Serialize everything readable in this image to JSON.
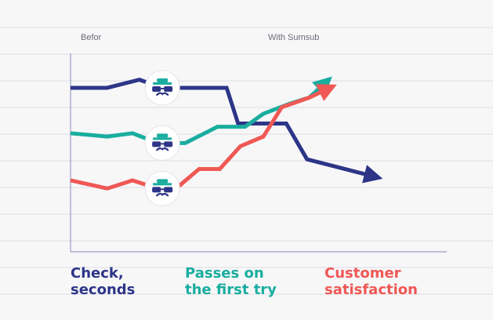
{
  "chart_data": {
    "type": "line",
    "phase_labels": {
      "before": "Befor",
      "after": "With Sumsub"
    },
    "x": [
      0,
      1,
      2,
      3,
      4,
      5,
      6,
      7,
      8,
      9,
      10,
      11,
      12,
      13,
      14
    ],
    "ylim": [
      0,
      10
    ],
    "grid": true,
    "legend": "bottom",
    "marker_icon": "spy-icon",
    "series": [
      {
        "name_lines": [
          "Check,",
          "seconds"
        ],
        "color": "#2d3587",
        "x": [
          0,
          1.6,
          3,
          4,
          5,
          6.8,
          7.3,
          8.8,
          9.4,
          10.3,
          13.6
        ],
        "y": [
          8.6,
          8.6,
          9.1,
          8.6,
          8.6,
          8.6,
          6.4,
          6.4,
          6.4,
          4.2,
          3.0
        ],
        "marker_x": 4
      },
      {
        "name_lines": [
          "Passes on",
          "the first try"
        ],
        "color": "#19ad9f",
        "x": [
          0,
          1.6,
          2.7,
          3.8,
          5,
          6.4,
          7.6,
          8.4,
          9.5,
          10.4,
          11.4
        ],
        "y": [
          5.8,
          5.6,
          5.8,
          5.2,
          5.2,
          6.2,
          6.2,
          7.0,
          7.6,
          8.0,
          9.3
        ],
        "marker_x": 4
      },
      {
        "name_lines": [
          "Customer",
          "satisfaction"
        ],
        "color": "#ef5854",
        "x": [
          0,
          1.6,
          2.7,
          3.8,
          4.6,
          5.6,
          6.5,
          7.4,
          8.4,
          9.2,
          10.4,
          11.6
        ],
        "y": [
          2.9,
          2.4,
          2.9,
          2.4,
          2.4,
          3.6,
          3.6,
          5.0,
          5.6,
          7.4,
          8.0,
          8.8
        ],
        "marker_x": 4
      }
    ]
  }
}
